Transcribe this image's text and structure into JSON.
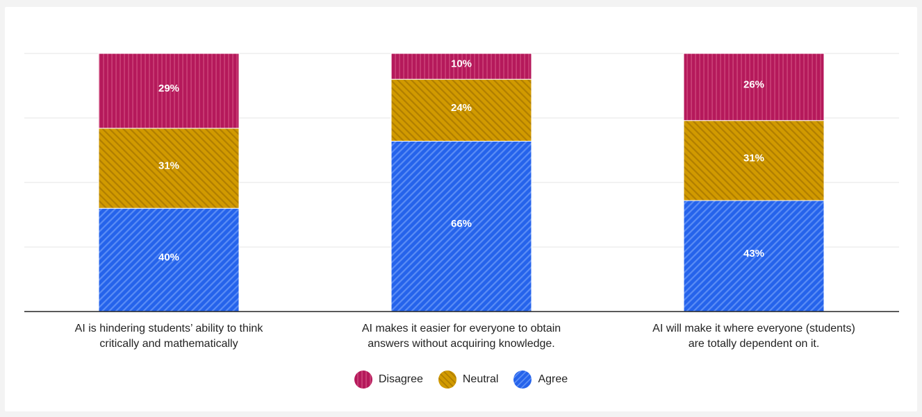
{
  "chart_data": {
    "type": "bar",
    "stacked": true,
    "orientation": "vertical",
    "categories": [
      "AI is hindering students’ ability to think critically and mathematically",
      "AI makes it easier for everyone to obtain answers without acquiring knowledge.",
      "AI will make it where everyone (students) are totally dependent on it."
    ],
    "category_lines": [
      [
        "AI is hindering students’ ability to think",
        "critically and mathematically"
      ],
      [
        "AI makes it easier for everyone to obtain",
        "answers without acquiring knowledge."
      ],
      [
        "AI will make it where everyone (students)",
        "are totally dependent on it."
      ]
    ],
    "series": [
      {
        "name": "Agree",
        "values": [
          40,
          66,
          43
        ],
        "labels": [
          "40%",
          "66%",
          "43%"
        ],
        "color": "#2563eb"
      },
      {
        "name": "Neutral",
        "values": [
          31,
          24,
          31
        ],
        "labels": [
          "31%",
          "24%",
          "31%"
        ],
        "color": "#d19a00"
      },
      {
        "name": "Disagree",
        "values": [
          29,
          10,
          26
        ],
        "labels": [
          "29%",
          "10%",
          "26%"
        ],
        "color": "#b5195b"
      }
    ],
    "legend_order": [
      "Disagree",
      "Neutral",
      "Agree"
    ],
    "legend_position": "bottom-center",
    "ylim": [
      0,
      100
    ],
    "grid": true,
    "title": "",
    "xlabel": "",
    "ylabel": ""
  }
}
